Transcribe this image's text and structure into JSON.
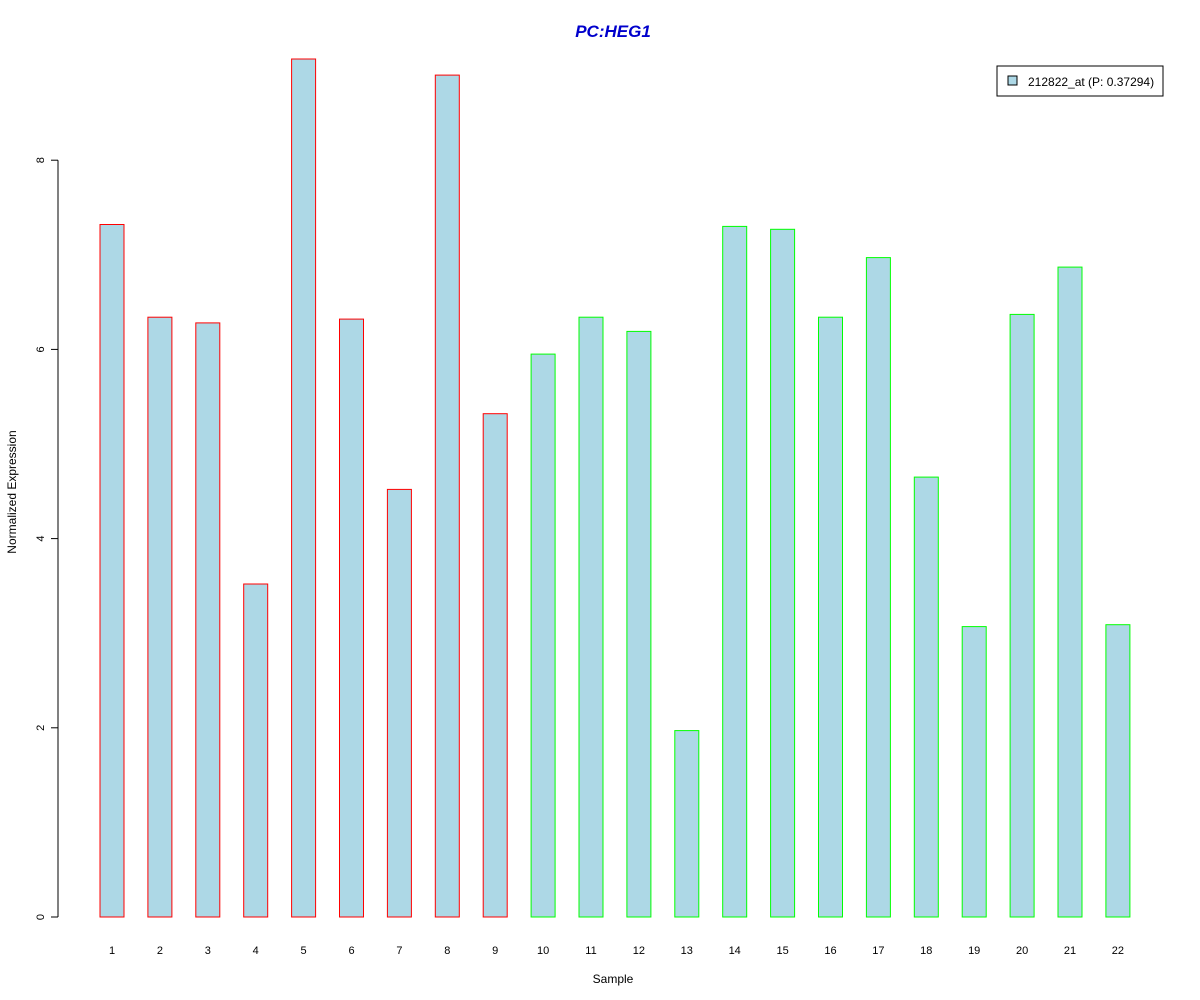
{
  "chart_data": {
    "type": "bar",
    "title": "PC:HEG1",
    "title_color": "#0000cc",
    "xlabel": "Sample",
    "ylabel": "Normalized Expression",
    "ylim": [
      0,
      9
    ],
    "yticks": [
      0,
      2,
      4,
      6,
      8
    ],
    "grid": false,
    "legend_position": "top-right",
    "legend": [
      {
        "label": "212822_at (P: 0.37294)",
        "color": "#add8e6"
      }
    ],
    "bar_fill": "#add8e6",
    "group_border_colors": {
      "first": "#ff0000",
      "second": "#00ff00"
    },
    "categories": [
      "1",
      "2",
      "3",
      "4",
      "5",
      "6",
      "7",
      "8",
      "9",
      "10",
      "11",
      "12",
      "13",
      "14",
      "15",
      "16",
      "17",
      "18",
      "19",
      "20",
      "21",
      "22"
    ],
    "values": [
      7.32,
      6.34,
      6.28,
      3.52,
      9.07,
      6.32,
      4.52,
      8.9,
      5.32,
      5.95,
      6.34,
      6.19,
      1.97,
      7.3,
      7.27,
      6.34,
      6.97,
      4.65,
      3.07,
      6.37,
      6.87,
      3.09
    ],
    "groups": [
      "first",
      "first",
      "first",
      "first",
      "first",
      "first",
      "first",
      "first",
      "first",
      "second",
      "second",
      "second",
      "second",
      "second",
      "second",
      "second",
      "second",
      "second",
      "second",
      "second",
      "second",
      "second"
    ]
  }
}
